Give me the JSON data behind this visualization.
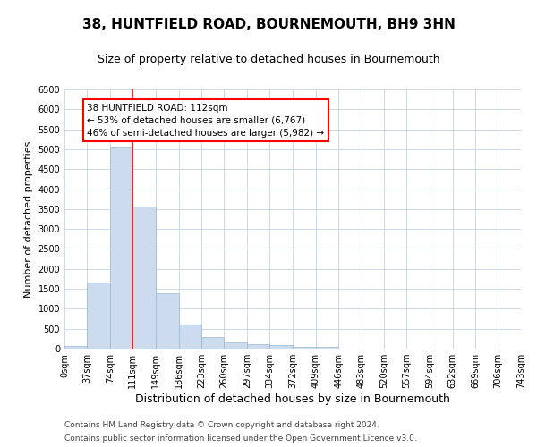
{
  "title": "38, HUNTFIELD ROAD, BOURNEMOUTH, BH9 3HN",
  "subtitle": "Size of property relative to detached houses in Bournemouth",
  "xlabel": "Distribution of detached houses by size in Bournemouth",
  "ylabel": "Number of detached properties",
  "footer_line1": "Contains HM Land Registry data © Crown copyright and database right 2024.",
  "footer_line2": "Contains public sector information licensed under the Open Government Licence v3.0.",
  "bin_edges": [
    0,
    37,
    74,
    111,
    149,
    186,
    223,
    260,
    297,
    334,
    372,
    409,
    446,
    483,
    520,
    557,
    594,
    632,
    669,
    706,
    743
  ],
  "bar_heights": [
    75,
    1650,
    5075,
    3575,
    1400,
    600,
    300,
    150,
    120,
    80,
    50,
    40,
    0,
    0,
    0,
    0,
    0,
    0,
    0,
    0
  ],
  "bar_color": "#ccdcee",
  "bar_edge_color": "#9ab8d4",
  "grid_color": "#ccd8e8",
  "ref_line_x": 111,
  "ref_line_color": "red",
  "annotation_text": "38 HUNTFIELD ROAD: 112sqm\n← 53% of detached houses are smaller (6,767)\n46% of semi-detached houses are larger (5,982) →",
  "annotation_box_color": "white",
  "annotation_box_edge": "red",
  "ylim": [
    0,
    6500
  ],
  "yticks": [
    0,
    500,
    1000,
    1500,
    2000,
    2500,
    3000,
    3500,
    4000,
    4500,
    5000,
    5500,
    6000,
    6500
  ],
  "title_fontsize": 11,
  "subtitle_fontsize": 9,
  "xlabel_fontsize": 9,
  "ylabel_fontsize": 8,
  "tick_fontsize": 7,
  "annotation_fontsize": 7.5,
  "footer_fontsize": 6.5
}
